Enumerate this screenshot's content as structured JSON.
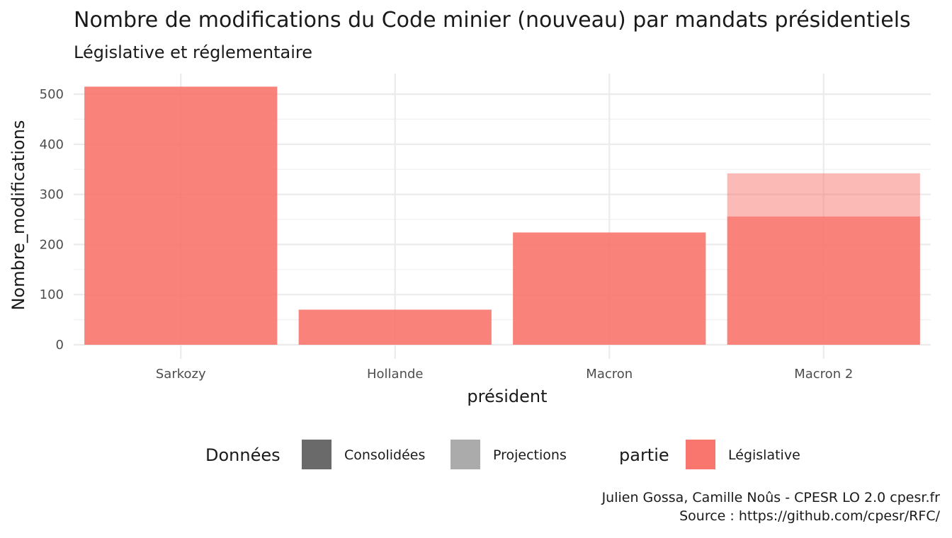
{
  "chart_data": {
    "type": "bar",
    "title": "Nombre de modifications du Code minier (nouveau) par mandats présidentiels",
    "subtitle": "Législative et réglementaire",
    "xlabel": "président",
    "ylabel": "Nombre_modifications",
    "categories": [
      "Sarkozy",
      "Hollande",
      "Macron",
      "Macron 2"
    ],
    "ylim": [
      0,
      540
    ],
    "yticks": [
      0,
      100,
      200,
      300,
      400,
      500
    ],
    "grid": true,
    "stacked": true,
    "series": [
      {
        "name": "Consolidées",
        "partie": "Législative",
        "values": [
          515,
          70,
          224,
          256
        ],
        "color": "#f8766d",
        "opacity": 0.9
      },
      {
        "name": "Projections",
        "partie": "Législative",
        "values": [
          0,
          0,
          0,
          86
        ],
        "color": "#f8766d",
        "opacity": 0.5
      }
    ],
    "legend": {
      "position": "bottom",
      "groups": [
        {
          "title": "Données",
          "items": [
            {
              "label": "Consolidées",
              "color": "#6a6a6a"
            },
            {
              "label": "Projections",
              "color": "#ababab"
            }
          ]
        },
        {
          "title": "partie",
          "items": [
            {
              "label": "Législative",
              "color": "#f8766d"
            }
          ]
        }
      ]
    },
    "caption": [
      "Julien Gossa, Camille Noûs - CPESR LO 2.0 cpesr.fr",
      "Source : https://github.com/cpesr/RFC/"
    ]
  }
}
